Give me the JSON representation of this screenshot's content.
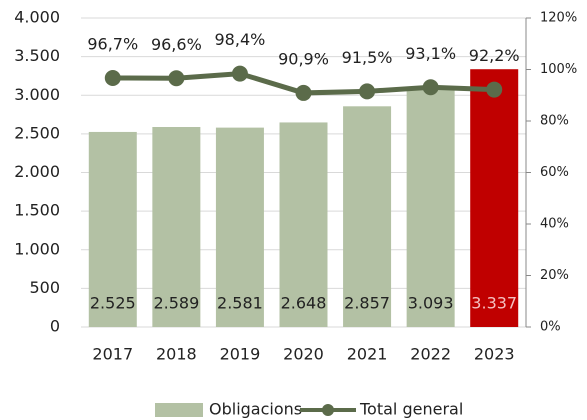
{
  "chart_data": {
    "type": "bar",
    "categories": [
      "2017",
      "2018",
      "2019",
      "2020",
      "2021",
      "2022",
      "2023"
    ],
    "series": [
      {
        "name": "Obligacions",
        "type": "bar",
        "color": "#b3c1a4",
        "colors": [
          "#b3c1a4",
          "#b3c1a4",
          "#b3c1a4",
          "#b3c1a4",
          "#b3c1a4",
          "#b3c1a4",
          "#c00000"
        ],
        "values": [
          2525,
          2589,
          2581,
          2648,
          2857,
          3093,
          3337
        ],
        "value_labels": [
          "2.525",
          "2.589",
          "2.581",
          "2.648",
          "2.857",
          "3.093",
          "3.337"
        ]
      },
      {
        "name": "Total general",
        "type": "line",
        "axis": "y2",
        "color": "#5b6b4a",
        "values": [
          96.7,
          96.6,
          98.4,
          90.9,
          91.5,
          93.1,
          92.2
        ],
        "value_labels": [
          "96,7%",
          "96,6%",
          "98,4%",
          "90,9%",
          "91,5%",
          "93,1%",
          "92,2%"
        ]
      }
    ],
    "ylim": [
      0,
      4000
    ],
    "yticks": [
      0,
      500,
      {
        "value": 1000,
        "label": "1.000"
      },
      {
        "value": 1500,
        "label": "1.500"
      },
      {
        "value": 2000,
        "label": "2.000"
      },
      {
        "value": 2500,
        "label": "2.500"
      },
      {
        "value": 3000,
        "label": "3.000"
      },
      {
        "value": 3500,
        "label": "3.500"
      },
      {
        "value": 4000,
        "label": "4.000"
      }
    ],
    "y2lim": [
      0,
      120
    ],
    "y2ticks": [
      {
        "value": 0,
        "label": "0%"
      },
      {
        "value": 20,
        "label": "20%"
      },
      {
        "value": 40,
        "label": "40%"
      },
      {
        "value": 60,
        "label": "60%"
      },
      {
        "value": 80,
        "label": "80%"
      },
      {
        "value": 100,
        "label": "100%"
      },
      {
        "value": 120,
        "label": "120%"
      }
    ],
    "grid": true,
    "legend": "bottom"
  }
}
